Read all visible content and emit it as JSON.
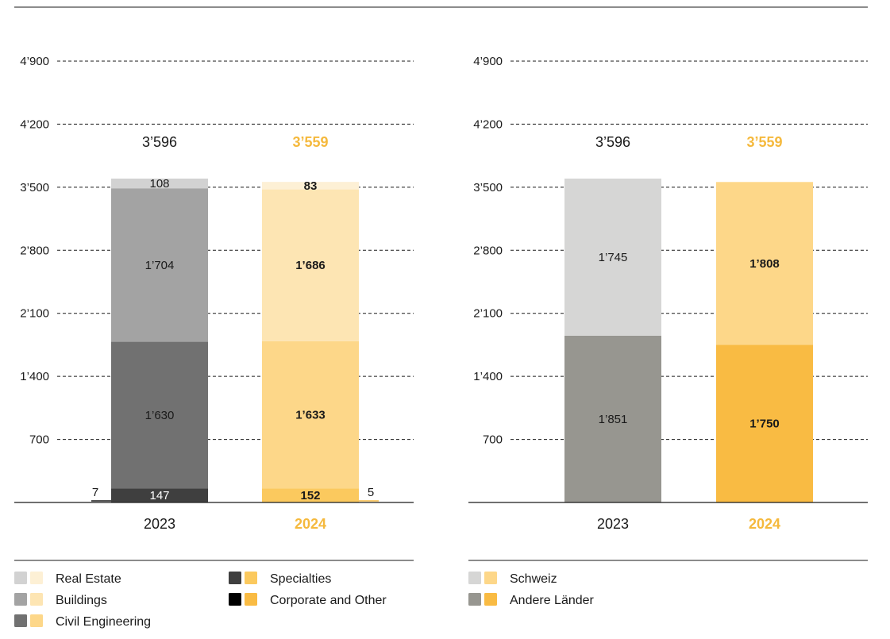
{
  "colors": {
    "accent": "#f5b93d",
    "text": "#1a1a1a"
  },
  "chart_data": [
    {
      "type": "bar",
      "stacked": true,
      "title": "",
      "xlabel": "",
      "ylabel": "",
      "categories": [
        "2023",
        "2024"
      ],
      "ylim": [
        0,
        4900
      ],
      "yticks": [
        700,
        1400,
        2100,
        2800,
        3500,
        4200,
        4900
      ],
      "ytick_labels": [
        "700",
        "1’400",
        "2’100",
        "2’800",
        "3’500",
        "4’200",
        "4’900"
      ],
      "grid": true,
      "totals": [
        3596,
        3559
      ],
      "total_labels": [
        "3’596",
        "3’559"
      ],
      "series": [
        {
          "name": "Corporate and Other",
          "values": [
            7,
            5
          ],
          "labels": [
            "7",
            "5"
          ],
          "colors": [
            "#000000",
            "#f9bb43"
          ],
          "label_outside": true
        },
        {
          "name": "Specialties",
          "values": [
            147,
            152
          ],
          "labels": [
            "147",
            "152"
          ],
          "colors": [
            "#3f3f3f",
            "#fbc95e"
          ]
        },
        {
          "name": "Civil Engineering",
          "values": [
            1630,
            1633
          ],
          "labels": [
            "1’630",
            "1’633"
          ],
          "colors": [
            "#717171",
            "#fdd789"
          ]
        },
        {
          "name": "Buildings",
          "values": [
            1704,
            1686
          ],
          "labels": [
            "1’704",
            "1’686"
          ],
          "colors": [
            "#a3a3a3",
            "#fde5b3"
          ]
        },
        {
          "name": "Real Estate",
          "values": [
            108,
            83
          ],
          "labels": [
            "108",
            "83"
          ],
          "colors": [
            "#d2d2d2",
            "#fdf0d5"
          ]
        }
      ],
      "legend": {
        "placement": "bottom",
        "items": [
          {
            "name": "Real Estate",
            "colors": [
              "#d2d2d2",
              "#fdf0d5"
            ]
          },
          {
            "name": "Buildings",
            "colors": [
              "#a3a3a3",
              "#fde5b3"
            ]
          },
          {
            "name": "Civil Engineering",
            "colors": [
              "#717171",
              "#fdd789"
            ]
          },
          {
            "name": "Specialties",
            "colors": [
              "#3f3f3f",
              "#fbc95e"
            ]
          },
          {
            "name": "Corporate and Other",
            "colors": [
              "#000000",
              "#f9bb43"
            ]
          }
        ]
      }
    },
    {
      "type": "bar",
      "stacked": true,
      "title": "",
      "xlabel": "",
      "ylabel": "",
      "categories": [
        "2023",
        "2024"
      ],
      "ylim": [
        0,
        4900
      ],
      "yticks": [
        700,
        1400,
        2100,
        2800,
        3500,
        4200,
        4900
      ],
      "ytick_labels": [
        "700",
        "1’400",
        "2’100",
        "2’800",
        "3’500",
        "4’200",
        "4’900"
      ],
      "grid": true,
      "totals": [
        3596,
        3559
      ],
      "total_labels": [
        "3’596",
        "3’559"
      ],
      "series": [
        {
          "name": "Andere Länder",
          "values": [
            1851,
            1750
          ],
          "labels": [
            "1’851",
            "1’750"
          ],
          "colors": [
            "#979690",
            "#f9bb43"
          ]
        },
        {
          "name": "Schweiz",
          "values": [
            1745,
            1808
          ],
          "labels": [
            "1’745",
            "1’808"
          ],
          "colors": [
            "#d6d6d5",
            "#fdd789"
          ]
        }
      ],
      "legend": {
        "placement": "bottom",
        "items": [
          {
            "name": "Schweiz",
            "colors": [
              "#d6d6d5",
              "#fdd789"
            ]
          },
          {
            "name": "Andere Länder",
            "colors": [
              "#979690",
              "#f9bb43"
            ]
          }
        ]
      }
    }
  ]
}
